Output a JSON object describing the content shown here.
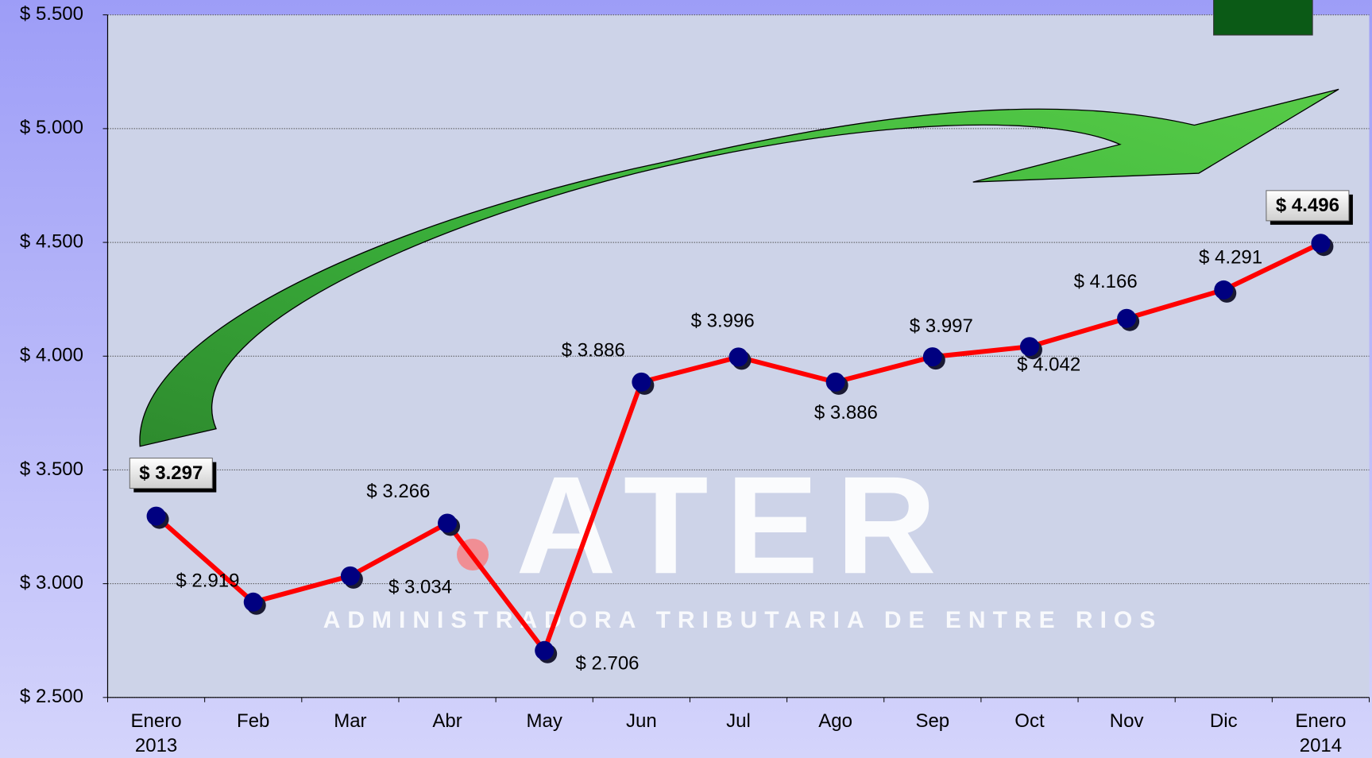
{
  "chart_data": {
    "type": "line",
    "categories": [
      "Enero 2013",
      "Feb",
      "Mar",
      "Abr",
      "May",
      "Jun",
      "Jul",
      "Ago",
      "Sep",
      "Oct",
      "Nov",
      "Dic",
      "Enero 2014"
    ],
    "values": [
      3297,
      2919,
      3034,
      3266,
      2706,
      3886,
      3996,
      3886,
      3997,
      4042,
      4166,
      4291,
      4496
    ],
    "value_labels": [
      "$ 3.297",
      "$ 2.919",
      "$ 3.034",
      "$ 3.266",
      "$ 2.706",
      "$ 3.886",
      "$ 3.996",
      "$ 3.886",
      "$ 3.997",
      "$ 4.042",
      "$ 4.166",
      "$ 4.291",
      "$ 4.496"
    ],
    "color": "#ff0000",
    "marker_color": "#000080",
    "ylim": [
      2500,
      5500
    ],
    "yticks": [
      {
        "value": 2500,
        "label": "$ 2.500"
      },
      {
        "value": 3000,
        "label": "$ 3.000"
      },
      {
        "value": 3500,
        "label": "$ 3.500"
      },
      {
        "value": 4000,
        "label": "$ 4.000"
      },
      {
        "value": 4500,
        "label": "$ 4.500"
      },
      {
        "value": 5000,
        "label": "$ 5.000"
      },
      {
        "value": 5500,
        "label": "$ 5.500"
      }
    ],
    "grid": true
  },
  "watermark": {
    "logo": "ATER",
    "subtitle": "ADMINISTRADORA TRIBUTARIA DE ENTRE RIOS"
  }
}
